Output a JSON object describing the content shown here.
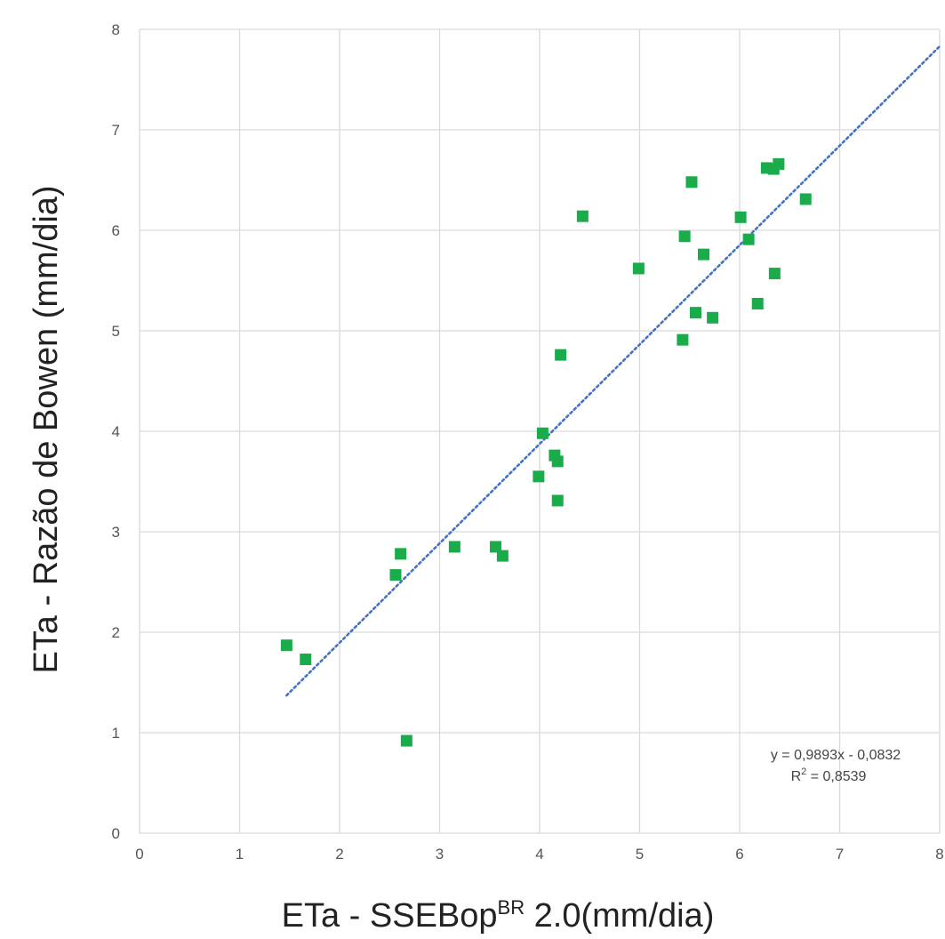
{
  "chart_data": {
    "type": "scatter",
    "title": "",
    "xlabel": "ETa - SSEBop",
    "xlabel_superscript": "BR",
    "xlabel_suffix": " 2.0(mm/dia)",
    "ylabel": "ETa - Razão de Bowen (mm/dia)",
    "xlim": [
      0,
      8
    ],
    "ylim": [
      0,
      8
    ],
    "xticks": [
      "0",
      "1",
      "2",
      "3",
      "4",
      "5",
      "6",
      "7",
      "8"
    ],
    "yticks": [
      "0",
      "1",
      "2",
      "3",
      "4",
      "5",
      "6",
      "7",
      "8"
    ],
    "grid": true,
    "legend": "none",
    "colors": {
      "points": "#1aac4a",
      "trendline": "#4472c4",
      "grid": "#d9d9d9"
    },
    "series": [
      {
        "x": [
          1.47,
          1.66,
          2.56,
          2.61,
          2.67,
          3.15,
          3.56,
          3.63,
          3.99,
          4.03,
          4.15,
          4.18,
          4.18,
          4.21,
          4.43,
          4.99,
          5.43,
          5.45,
          5.52,
          5.56,
          5.64,
          5.73,
          6.01,
          6.09,
          6.18,
          6.27,
          6.34,
          6.35,
          6.39,
          6.66
        ],
        "y": [
          1.87,
          1.73,
          2.57,
          2.78,
          0.92,
          2.85,
          2.85,
          2.76,
          3.55,
          3.98,
          3.76,
          3.31,
          3.7,
          4.76,
          6.14,
          5.62,
          4.91,
          5.94,
          6.48,
          5.18,
          5.76,
          5.13,
          6.13,
          5.91,
          5.27,
          6.62,
          6.61,
          5.57,
          6.66,
          6.31
        ]
      }
    ],
    "trendline": {
      "type": "linear",
      "slope": 0.9893,
      "intercept": -0.0832,
      "x_range": [
        1.47,
        8.0
      ],
      "equation": "y = 0,9893x - 0,0832",
      "r2_prefix": "R",
      "r2_superscript": "2",
      "r2_suffix": " = 0,8539"
    }
  }
}
